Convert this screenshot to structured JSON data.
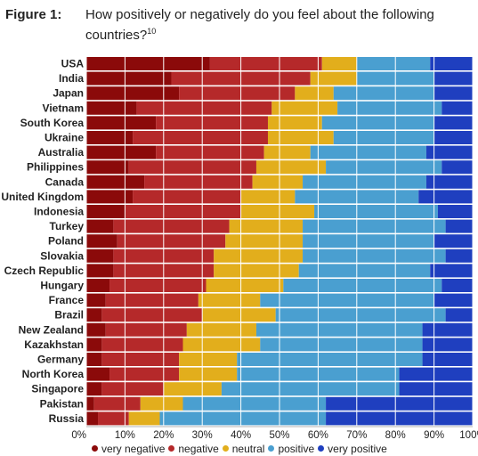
{
  "figure": {
    "label": "Figure 1:",
    "title": "How positively or negatively do you feel about the following countries?",
    "footnote": "10"
  },
  "chart_data": {
    "type": "bar",
    "orientation": "horizontal",
    "stacked": true,
    "categories": [
      "USA",
      "India",
      "Japan",
      "Vietnam",
      "South Korea",
      "Ukraine",
      "Australia",
      "Philippines",
      "Canada",
      "United Kingdom",
      "Indonesia",
      "Turkey",
      "Poland",
      "Slovakia",
      "Czech Republic",
      "Hungary",
      "France",
      "Brazil",
      "New Zealand",
      "Kazakhstan",
      "Germany",
      "North Korea",
      "Singapore",
      "Pakistan",
      "Russia"
    ],
    "series": [
      {
        "name": "very negative",
        "color": "#8b0a0a",
        "values": [
          32,
          22,
          24,
          13,
          18,
          12,
          18,
          11,
          15,
          12,
          10,
          7,
          8,
          7,
          7,
          6,
          5,
          4,
          5,
          4,
          4,
          6,
          4,
          2,
          3
        ]
      },
      {
        "name": "negative",
        "color": "#b5292a",
        "values": [
          29,
          36,
          30,
          35,
          29,
          35,
          28,
          33,
          28,
          28,
          30,
          30,
          28,
          26,
          26,
          25,
          24,
          26,
          21,
          21,
          20,
          18,
          16,
          12,
          8
        ]
      },
      {
        "name": "neutral",
        "color": "#e2ae1c",
        "values": [
          9,
          12,
          10,
          17,
          14,
          17,
          12,
          18,
          13,
          14,
          19,
          19,
          20,
          23,
          22,
          20,
          16,
          19,
          18,
          20,
          15,
          15,
          15,
          11,
          8
        ]
      },
      {
        "name": "positive",
        "color": "#4a9fd0",
        "values": [
          19,
          20,
          26,
          27,
          29,
          26,
          30,
          30,
          32,
          32,
          32,
          37,
          34,
          37,
          34,
          41,
          45,
          44,
          43,
          42,
          48,
          42,
          46,
          37,
          43
        ]
      },
      {
        "name": "very positive",
        "color": "#1f3fbf",
        "values": [
          11,
          10,
          10,
          8,
          10,
          10,
          12,
          8,
          12,
          14,
          9,
          7,
          10,
          7,
          11,
          8,
          10,
          7,
          13,
          13,
          13,
          19,
          19,
          38,
          38
        ]
      }
    ],
    "x_ticks": [
      "0%",
      "10%",
      "20%",
      "30%",
      "40%",
      "50%",
      "60%",
      "70%",
      "80%",
      "90%",
      "100%"
    ],
    "xlim": [
      0,
      100
    ],
    "grid": true,
    "legend_position": "bottom"
  }
}
